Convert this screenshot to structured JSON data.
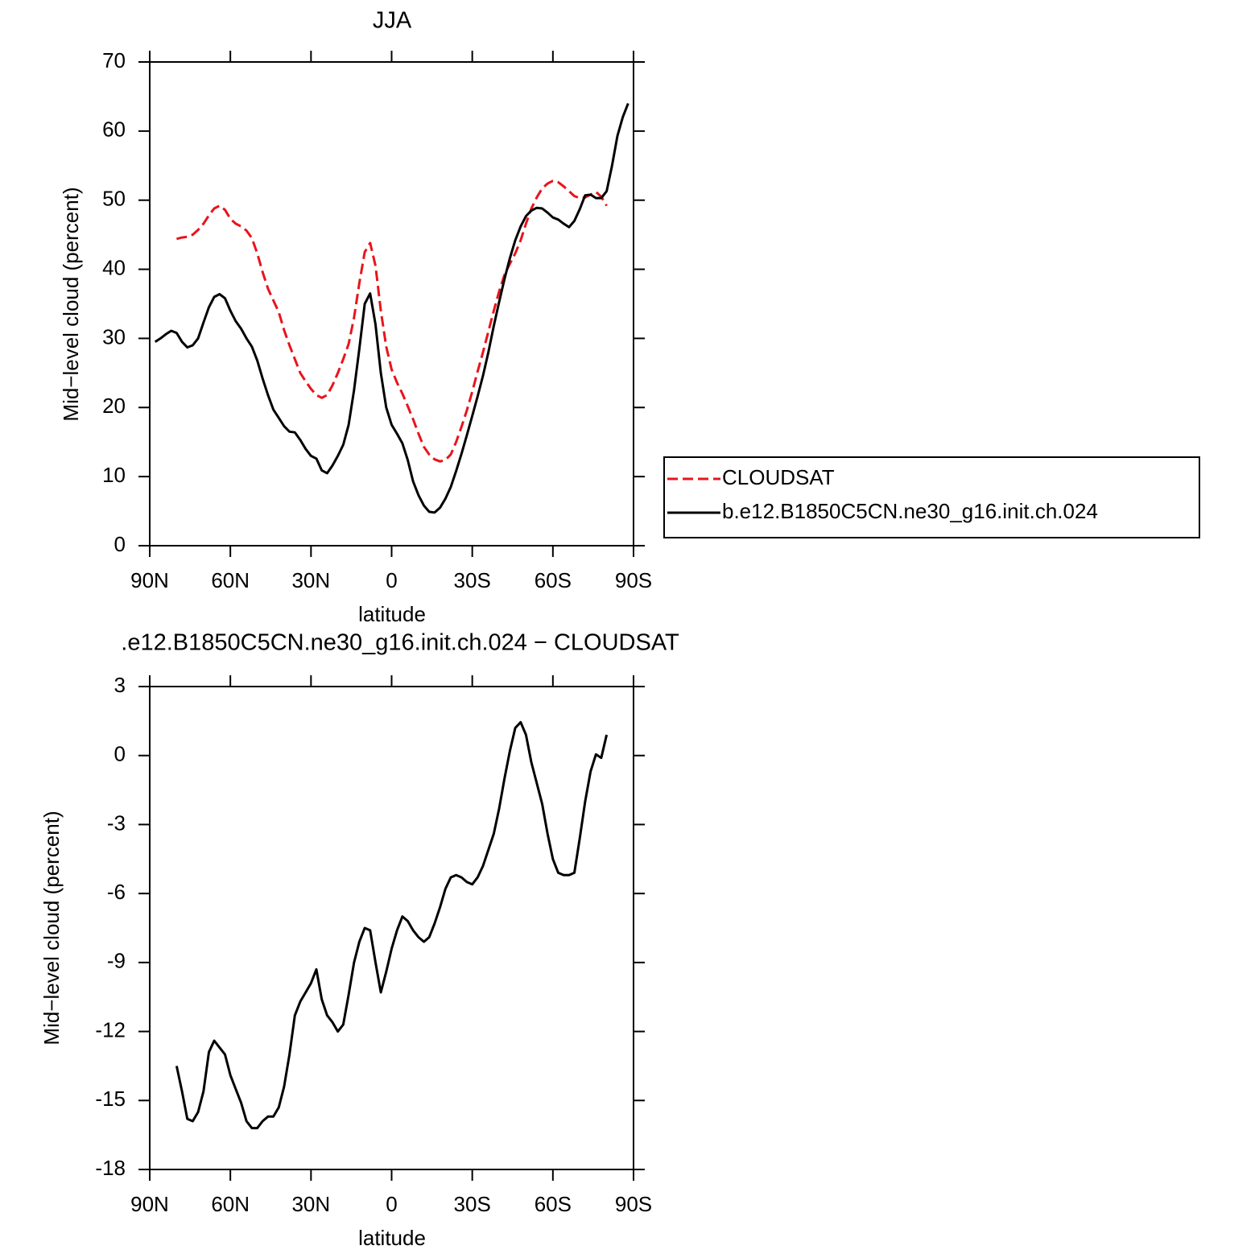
{
  "chart_data": [
    {
      "type": "line",
      "title": "JJA",
      "xlabel": "latitude",
      "ylabel": "Mid−level cloud (percent)",
      "x": [
        88,
        86,
        84,
        82,
        80,
        78,
        76,
        74,
        72,
        70,
        68,
        66,
        64,
        62,
        60,
        58,
        56,
        54,
        52,
        50,
        48,
        46,
        44,
        42,
        40,
        38,
        36,
        34,
        32,
        30,
        28,
        26,
        24,
        22,
        20,
        18,
        16,
        14,
        12,
        10,
        8,
        6,
        4,
        2,
        0,
        -2,
        -4,
        -6,
        -8,
        -10,
        -12,
        -14,
        -16,
        -18,
        -20,
        -22,
        -24,
        -26,
        -28,
        -30,
        -32,
        -34,
        -36,
        -38,
        -40,
        -42,
        -44,
        -46,
        -48,
        -50,
        -52,
        -54,
        -56,
        -58,
        -60,
        -62,
        -64,
        -66,
        -68,
        -70,
        -72,
        -74,
        -76,
        -78,
        -80,
        -82,
        -84,
        -86,
        -88
      ],
      "xlim": [
        90,
        -90
      ],
      "xticks": [
        {
          "value": 90,
          "label": "90N"
        },
        {
          "value": 60,
          "label": "60N"
        },
        {
          "value": 30,
          "label": "30N"
        },
        0,
        {
          "value": -30,
          "label": "30S"
        },
        {
          "value": -60,
          "label": "60S"
        },
        {
          "value": -90,
          "label": "90S"
        }
      ],
      "ylim": [
        0,
        70
      ],
      "yticks": [
        0,
        10,
        20,
        30,
        40,
        50,
        60,
        70
      ],
      "legend": "right",
      "series": [
        {
          "name": "CLOUDSAT",
          "color": "#e8141c",
          "dashed": true,
          "values": [
            null,
            null,
            null,
            null,
            44.4,
            44.6,
            44.7,
            45,
            45.7,
            46.6,
            47.8,
            48.8,
            49.2,
            48.6,
            47.3,
            46.6,
            46.2,
            45.6,
            44.5,
            42.3,
            39.6,
            37.2,
            35.5,
            33.8,
            31.2,
            29,
            27,
            25,
            23.8,
            22.7,
            21.8,
            21.4,
            21.8,
            23.2,
            25,
            27,
            29.2,
            33,
            38,
            42.5,
            43.8,
            40.5,
            34,
            28.8,
            25.5,
            23.6,
            22,
            20.2,
            18.3,
            16.2,
            14.3,
            13.2,
            12.5,
            12.2,
            12.4,
            13.2,
            15,
            17.2,
            19.6,
            22.3,
            25.2,
            28,
            31,
            34,
            36.8,
            39.2,
            40.8,
            42.3,
            44.2,
            46.6,
            48.8,
            50.4,
            51.7,
            52.4,
            52.8,
            52.6,
            52,
            51.3,
            50.6,
            50.3,
            50.4,
            50.8,
            51.2,
            50.5,
            49.2,
            null,
            null,
            null,
            null
          ]
        },
        {
          "name": "b.e12.B1850C5CN.ne30_g16.init.ch.024",
          "color": "#000000",
          "dashed": false,
          "values": [
            29.5,
            30,
            30.6,
            31.1,
            30.8,
            29.5,
            28.7,
            29,
            30,
            32.3,
            34.5,
            36,
            36.4,
            35.8,
            34,
            32.5,
            31.4,
            30,
            28.8,
            26.8,
            24.2,
            21.8,
            19.7,
            18.5,
            17.3,
            16.5,
            16.4,
            15.3,
            14,
            13,
            12.6,
            10.9,
            10.5,
            11.6,
            13,
            14.6,
            17.5,
            22.5,
            28.5,
            35,
            36.5,
            32,
            25,
            20,
            17.5,
            16.2,
            14.8,
            12.4,
            9.3,
            7.3,
            5.8,
            4.9,
            4.8,
            5.5,
            6.8,
            8.5,
            10.8,
            13.3,
            16,
            18.8,
            21.6,
            24.6,
            28,
            31.8,
            35.3,
            38.6,
            41.6,
            44.2,
            46.2,
            47.7,
            48.5,
            48.9,
            48.8,
            48.2,
            47.5,
            47.2,
            46.6,
            46.1,
            47,
            48.7,
            50.7,
            50.8,
            50.3,
            50.3,
            51.3,
            55,
            59.3,
            62,
            64
          ]
        }
      ]
    },
    {
      "type": "line",
      "title": ".e12.B1850C5CN.ne30_g16.init.ch.024 − CLOUDSAT",
      "xlabel": "latitude",
      "ylabel": "Mid−level cloud (percent)",
      "x": [
        88,
        86,
        84,
        82,
        80,
        78,
        76,
        74,
        72,
        70,
        68,
        66,
        64,
        62,
        60,
        58,
        56,
        54,
        52,
        50,
        48,
        46,
        44,
        42,
        40,
        38,
        36,
        34,
        32,
        30,
        28,
        26,
        24,
        22,
        20,
        18,
        16,
        14,
        12,
        10,
        8,
        6,
        4,
        2,
        0,
        -2,
        -4,
        -6,
        -8,
        -10,
        -12,
        -14,
        -16,
        -18,
        -20,
        -22,
        -24,
        -26,
        -28,
        -30,
        -32,
        -34,
        -36,
        -38,
        -40,
        -42,
        -44,
        -46,
        -48,
        -50,
        -52,
        -54,
        -56,
        -58,
        -60,
        -62,
        -64,
        -66,
        -68,
        -70,
        -72,
        -74,
        -76,
        -78,
        -80,
        -82,
        -84,
        -86,
        -88
      ],
      "xlim": [
        90,
        -90
      ],
      "xticks": [
        {
          "value": 90,
          "label": "90N"
        },
        {
          "value": 60,
          "label": "60N"
        },
        {
          "value": 30,
          "label": "30N"
        },
        0,
        {
          "value": -30,
          "label": "30S"
        },
        {
          "value": -60,
          "label": "60S"
        },
        {
          "value": -90,
          "label": "90S"
        }
      ],
      "ylim": [
        -18,
        3
      ],
      "yticks": [
        3,
        0,
        -3,
        -6,
        -9,
        -12,
        -15,
        -18
      ],
      "color": "#000000",
      "values": [
        null,
        null,
        null,
        null,
        -13.5,
        -14.6,
        -15.8,
        -15.9,
        -15.5,
        -14.6,
        -12.9,
        -12.4,
        -12.7,
        -13,
        -13.9,
        -14.5,
        -15.1,
        -15.9,
        -16.2,
        -16.2,
        -15.9,
        -15.7,
        -15.7,
        -15.3,
        -14.4,
        -13,
        -11.3,
        -10.7,
        -10.3,
        -9.9,
        -9.3,
        -10.6,
        -11.3,
        -11.6,
        -12,
        -11.7,
        -10.4,
        -9,
        -8.1,
        -7.5,
        -7.6,
        -9,
        -10.3,
        -9.4,
        -8.4,
        -7.6,
        -7,
        -7.2,
        -7.6,
        -7.9,
        -8.1,
        -7.9,
        -7.3,
        -6.6,
        -5.8,
        -5.3,
        -5.2,
        -5.3,
        -5.5,
        -5.6,
        -5.3,
        -4.8,
        -4.1,
        -3.4,
        -2.3,
        -1,
        0.2,
        1.2,
        1.45,
        0.9,
        -0.3,
        -1.2,
        -2.1,
        -3.4,
        -4.5,
        -5.1,
        -5.2,
        -5.2,
        -5.1,
        -3.6,
        -2,
        -0.7,
        0.05,
        -0.1,
        0.9,
        null,
        null,
        null,
        null
      ]
    }
  ]
}
